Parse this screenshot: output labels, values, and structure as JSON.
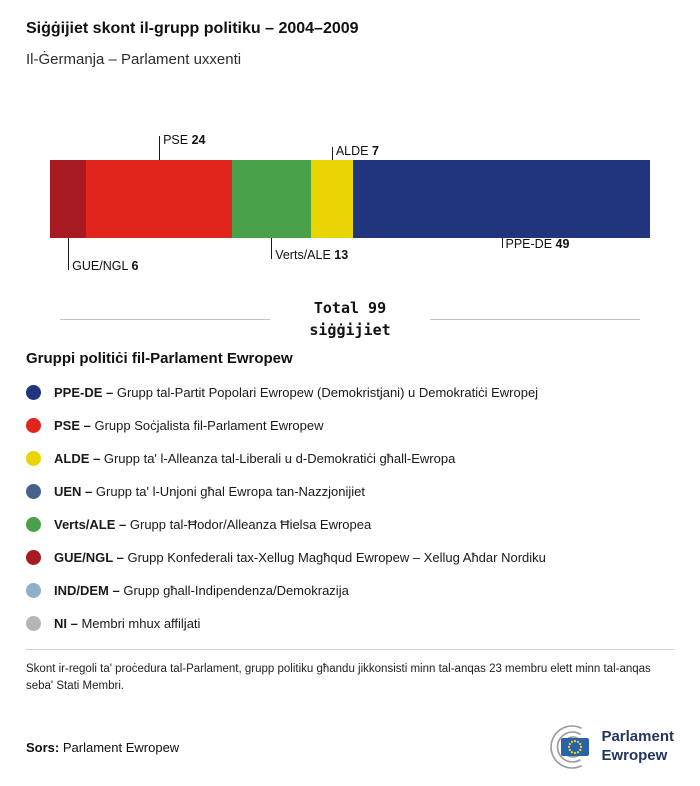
{
  "header": {
    "title": "Siġġijiet skont il-grupp politiku – 2004–2009",
    "subtitle": "Il-Ġermanja – Parlament uxxenti"
  },
  "chart_data": {
    "type": "bar",
    "orientation": "horizontal-stacked",
    "title": "Siġġijiet skont il-grupp politiku – 2004–2009",
    "subtitle": "Il-Ġermanja – Parlament uxxenti",
    "total": 99,
    "total_line1": "Total 99",
    "total_line2": "siġġijiet",
    "categories": [
      "GUE/NGL",
      "PSE",
      "Verts/ALE",
      "ALDE",
      "PPE-DE"
    ],
    "values": [
      6,
      24,
      13,
      7,
      49
    ],
    "segments": [
      {
        "name": "GUE/NGL",
        "value": 6,
        "color": "#a81a21",
        "side": "below",
        "level": 2
      },
      {
        "name": "PSE",
        "value": 24,
        "color": "#e1251c",
        "side": "above",
        "level": 0
      },
      {
        "name": "Verts/ALE",
        "value": 13,
        "color": "#49a24a",
        "side": "below",
        "level": 1
      },
      {
        "name": "ALDE",
        "value": 7,
        "color": "#e8d503",
        "side": "above",
        "level": 1
      },
      {
        "name": "PPE-DE",
        "value": 49,
        "color": "#21357e",
        "side": "below",
        "level": 0
      }
    ]
  },
  "legend": {
    "heading": "Gruppi politiċi fil-Parlament Ewropew",
    "separator": "–",
    "items": [
      {
        "abbr": "PPE-DE",
        "desc": "Grupp tal-Partit Popolari Ewropew (Demokristjani) u Demokratiċi Ewropej",
        "color": "#21357e"
      },
      {
        "abbr": "PSE",
        "desc": "Grupp Soċjalista fil-Parlament Ewropew",
        "color": "#e1251c"
      },
      {
        "abbr": "ALDE",
        "desc": "Grupp ta' l-Alleanza tal-Liberali u d-Demokratiċi għall-Ewropa",
        "color": "#e8d503"
      },
      {
        "abbr": "UEN",
        "desc": "Grupp ta' l-Unjoni għal Ewropa tan-Nazzjonijiet",
        "color": "#47628f"
      },
      {
        "abbr": "Verts/ALE",
        "desc": "Grupp tal-Ħodor/Alleanza Ħielsa Ewropea",
        "color": "#49a24a"
      },
      {
        "abbr": "GUE/NGL",
        "desc": "Grupp Konfederali tax-Xellug Magħqud Ewropew – Xellug Aħdar Nordiku",
        "color": "#a81a21"
      },
      {
        "abbr": "IND/DEM",
        "desc": "Grupp għall-Indipendenza/Demokrazija",
        "color": "#8fb0c5"
      },
      {
        "abbr": "NI",
        "desc": "Membri mhux affiljati",
        "color": "#b5b5b5"
      }
    ]
  },
  "footnote": "Skont ir-regoli ta' proċedura tal-Parlament, grupp politiku għandu jikkonsisti minn tal-anqas 23 membru elett minn tal-anqas seba' Stati Membri.",
  "source": {
    "label": "Sors:",
    "value": "Parlament Ewropew"
  },
  "logo": {
    "line1": "Parlament",
    "line2": "Ewropew"
  }
}
